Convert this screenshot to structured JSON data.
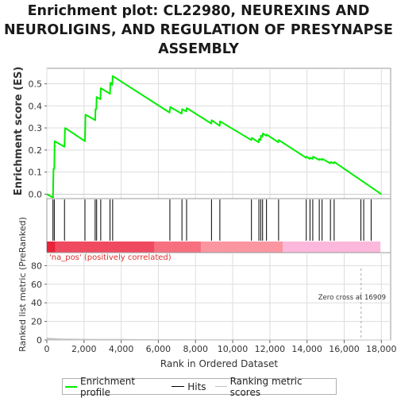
{
  "chart_data": {
    "type": "line",
    "title": "Enrichment plot: CL22980, NEUREXINS AND NEUROLIGINS, AND REGULATION OF PRESYNAPSE ASSEMBLY",
    "title_lines": [
      "Enrichment plot: CL22980, NEUREXINS AND",
      "NEUROLIGINS, AND REGULATION OF PRESYNAPSE",
      "ASSEMBLY"
    ],
    "xlabel": "Rank in Ordered Dataset",
    "xlim": [
      0,
      18500
    ],
    "xticks": [
      0,
      2000,
      4000,
      6000,
      8000,
      10000,
      12000,
      14000,
      16000,
      18000
    ],
    "xtick_labels": [
      "0",
      "2,000",
      "4,000",
      "6,000",
      "8,000",
      "10,000",
      "12,000",
      "14,000",
      "16,000",
      "18,000"
    ],
    "es_panel": {
      "ylabel": "Enrichment score (ES)",
      "ylim": [
        -0.02,
        0.57
      ],
      "yticks": [
        0.0,
        0.1,
        0.2,
        0.3,
        0.4,
        0.5
      ],
      "ytick_labels": [
        "0.0",
        "0.1",
        "0.2",
        "0.3",
        "0.4",
        "0.5"
      ],
      "series_name": "Enrichment profile",
      "color": "#00ee00",
      "profile": [
        [
          0,
          0.0
        ],
        [
          330,
          -0.015
        ],
        [
          360,
          0.115
        ],
        [
          400,
          0.115
        ],
        [
          420,
          0.24
        ],
        [
          950,
          0.215
        ],
        [
          980,
          0.3
        ],
        [
          2050,
          0.24
        ],
        [
          2080,
          0.36
        ],
        [
          2600,
          0.335
        ],
        [
          2620,
          0.385
        ],
        [
          2660,
          0.385
        ],
        [
          2680,
          0.44
        ],
        [
          2880,
          0.43
        ],
        [
          2900,
          0.48
        ],
        [
          3400,
          0.455
        ],
        [
          3420,
          0.505
        ],
        [
          3520,
          0.495
        ],
        [
          3540,
          0.535
        ],
        [
          6600,
          0.37
        ],
        [
          6640,
          0.395
        ],
        [
          7250,
          0.365
        ],
        [
          7280,
          0.385
        ],
        [
          7500,
          0.375
        ],
        [
          7530,
          0.39
        ],
        [
          8850,
          0.32
        ],
        [
          8870,
          0.335
        ],
        [
          9300,
          0.31
        ],
        [
          9320,
          0.33
        ],
        [
          11000,
          0.245
        ],
        [
          11030,
          0.255
        ],
        [
          11400,
          0.235
        ],
        [
          11420,
          0.25
        ],
        [
          11500,
          0.245
        ],
        [
          11520,
          0.265
        ],
        [
          11600,
          0.26
        ],
        [
          11620,
          0.275
        ],
        [
          11800,
          0.265
        ],
        [
          11830,
          0.27
        ],
        [
          12450,
          0.235
        ],
        [
          12480,
          0.245
        ],
        [
          13950,
          0.165
        ],
        [
          13980,
          0.17
        ],
        [
          14150,
          0.16
        ],
        [
          14180,
          0.165
        ],
        [
          14300,
          0.16
        ],
        [
          14330,
          0.17
        ],
        [
          14650,
          0.155
        ],
        [
          14680,
          0.16
        ],
        [
          14800,
          0.155
        ],
        [
          14830,
          0.16
        ],
        [
          15250,
          0.14
        ],
        [
          15280,
          0.145
        ],
        [
          15450,
          0.14
        ],
        [
          15480,
          0.145
        ],
        [
          18000,
          0.0
        ]
      ]
    },
    "hits": {
      "series_name": "Hits",
      "ranks": [
        330,
        400,
        950,
        2050,
        2600,
        2680,
        2900,
        3400,
        3540,
        6620,
        7270,
        7520,
        8860,
        9310,
        11010,
        11410,
        11510,
        11610,
        11820,
        12470,
        13960,
        14160,
        14310,
        14660,
        14810,
        15260,
        15460,
        16900,
        17050,
        17450
      ]
    },
    "ranking_bar": {
      "segments": [
        {
          "from": 0,
          "to": 450,
          "color": "#e8233a"
        },
        {
          "from": 450,
          "to": 5800,
          "color": "#f04a60"
        },
        {
          "from": 5800,
          "to": 8300,
          "color": "#f77080"
        },
        {
          "from": 8300,
          "to": 12700,
          "color": "#fb96a0"
        },
        {
          "from": 12700,
          "to": 17950,
          "color": "#fbb8dc"
        }
      ]
    },
    "metric_panel": {
      "ylabel": "Ranked list metric (PreRanked)",
      "ylim": [
        0,
        94
      ],
      "yticks": [
        0,
        20,
        40,
        60,
        80
      ],
      "ytick_labels": [
        "0",
        "20",
        "40",
        "60",
        "80"
      ],
      "series_name": "Ranking metric scores",
      "color": "#c0c0c0",
      "metric": [
        [
          0,
          2.5
        ],
        [
          80,
          1.8
        ],
        [
          700,
          1.2
        ],
        [
          2000,
          0.8
        ],
        [
          4000,
          0.6
        ],
        [
          6000,
          0.3
        ],
        [
          10000,
          0.15
        ],
        [
          16909,
          0.0
        ],
        [
          18000,
          -0.1
        ]
      ],
      "pos_label": "'na_pos' (positively correlated)",
      "pos_label_color": "#e03030",
      "zero_cross_label": "Zero cross at 16909",
      "zero_cross": 16909
    },
    "legend": [
      "Enrichment profile",
      "Hits",
      "Ranking metric scores"
    ],
    "grid": true
  }
}
